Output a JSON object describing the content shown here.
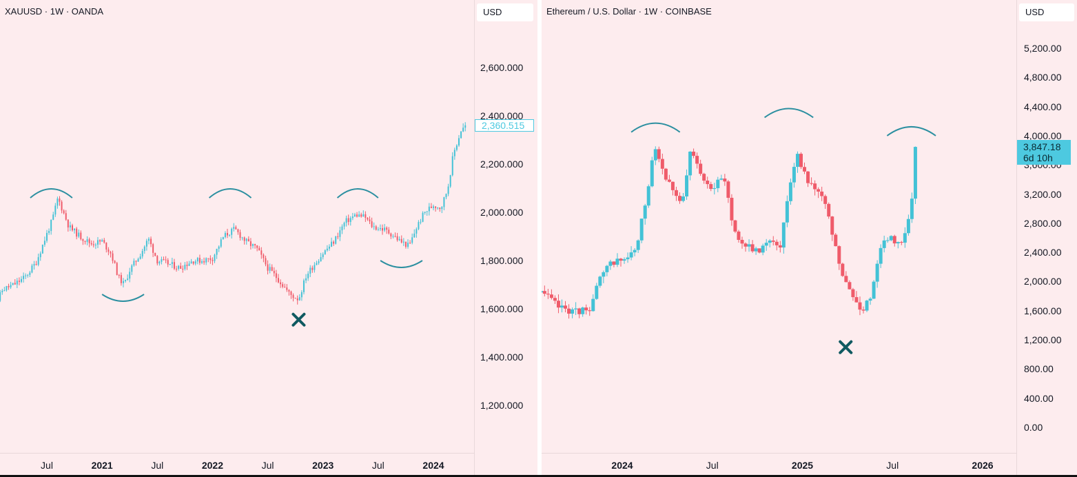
{
  "chart_data": [
    {
      "type": "candlestick",
      "title": "XAUUSD · 1W · OANDA",
      "currency": "USD",
      "y_ticks": [
        "2,600.000",
        "2,400.000",
        "2,200.000",
        "2,000.000",
        "1,800.000",
        "1,600.000",
        "1,400.000",
        "1,200.000"
      ],
      "y_tick_values": [
        2600,
        2400,
        2200,
        2000,
        1800,
        1600,
        1400,
        1200
      ],
      "x_ticks": [
        {
          "label": "Jul",
          "t": 2020.5,
          "bold": false
        },
        {
          "label": "2021",
          "t": 2021.0,
          "bold": true
        },
        {
          "label": "Jul",
          "t": 2021.5,
          "bold": false
        },
        {
          "label": "2022",
          "t": 2022.0,
          "bold": true
        },
        {
          "label": "Jul",
          "t": 2022.5,
          "bold": false
        },
        {
          "label": "2023",
          "t": 2023.0,
          "bold": true
        },
        {
          "label": "Jul",
          "t": 2023.5,
          "bold": false
        },
        {
          "label": "2024",
          "t": 2024.0,
          "bold": true
        }
      ],
      "last_price_label": "2,360.515",
      "last_price": 2360.515,
      "path": [
        [
          2020.0,
          1580
        ],
        [
          2020.1,
          1680
        ],
        [
          2020.2,
          1700
        ],
        [
          2020.3,
          1730
        ],
        [
          2020.4,
          1790
        ],
        [
          2020.55,
          1970
        ],
        [
          2020.6,
          2060
        ],
        [
          2020.7,
          1940
        ],
        [
          2020.8,
          1900
        ],
        [
          2020.9,
          1870
        ],
        [
          2021.0,
          1880
        ],
        [
          2021.08,
          1830
        ],
        [
          2021.15,
          1730
        ],
        [
          2021.2,
          1700
        ],
        [
          2021.25,
          1760
        ],
        [
          2021.35,
          1830
        ],
        [
          2021.42,
          1890
        ],
        [
          2021.5,
          1800
        ],
        [
          2021.58,
          1790
        ],
        [
          2021.7,
          1770
        ],
        [
          2021.82,
          1800
        ],
        [
          2021.9,
          1800
        ],
        [
          2022.0,
          1810
        ],
        [
          2022.1,
          1900
        ],
        [
          2022.2,
          1930
        ],
        [
          2022.3,
          1880
        ],
        [
          2022.4,
          1850
        ],
        [
          2022.5,
          1770
        ],
        [
          2022.6,
          1720
        ],
        [
          2022.7,
          1660
        ],
        [
          2022.78,
          1640
        ],
        [
          2022.85,
          1740
        ],
        [
          2022.93,
          1790
        ],
        [
          2023.0,
          1830
        ],
        [
          2023.1,
          1880
        ],
        [
          2023.2,
          1960
        ],
        [
          2023.3,
          1990
        ],
        [
          2023.38,
          1980
        ],
        [
          2023.45,
          1940
        ],
        [
          2023.55,
          1930
        ],
        [
          2023.62,
          1910
        ],
        [
          2023.7,
          1880
        ],
        [
          2023.78,
          1860
        ],
        [
          2023.85,
          1940
        ],
        [
          2023.92,
          2000
        ],
        [
          2024.0,
          2030
        ],
        [
          2024.07,
          2020
        ],
        [
          2024.13,
          2100
        ],
        [
          2024.18,
          2240
        ],
        [
          2024.25,
          2340
        ],
        [
          2024.3,
          2360.515
        ]
      ],
      "annotations": {
        "arcs_top": [
          {
            "t_start": 2020.35,
            "t_end": 2020.73,
            "y": 2060
          },
          {
            "t_start": 2021.97,
            "t_end": 2022.35,
            "y": 2060
          },
          {
            "t_start": 2023.13,
            "t_end": 2023.5,
            "y": 2060
          }
        ],
        "arcs_bottom": [
          {
            "t_start": 2021.0,
            "t_end": 2021.38,
            "y": 1660
          },
          {
            "t_start": 2023.52,
            "t_end": 2023.9,
            "y": 1800
          }
        ],
        "x_mark": {
          "t": 2022.78,
          "y": 1555
        }
      }
    },
    {
      "type": "candlestick",
      "title": "Ethereum / U.S. Dollar · 1W · COINBASE",
      "currency": "USD",
      "y_ticks": [
        "5,200.00",
        "4,800.00",
        "4,400.00",
        "4,000.00",
        "3,600.00",
        "3,200.00",
        "2,800.00",
        "2,400.00",
        "2,000.00",
        "1,600.00",
        "1,200.00",
        "800.00",
        "400.00",
        "0.00"
      ],
      "y_tick_values": [
        5200,
        4800,
        4400,
        4000,
        3600,
        3200,
        2800,
        2400,
        2000,
        1600,
        1200,
        800,
        400,
        0
      ],
      "x_ticks": [
        {
          "label": "2024",
          "t": 2024.0,
          "bold": true
        },
        {
          "label": "Jul",
          "t": 2024.5,
          "bold": false
        },
        {
          "label": "2025",
          "t": 2025.0,
          "bold": true
        },
        {
          "label": "Jul",
          "t": 2025.5,
          "bold": false
        },
        {
          "label": "2026",
          "t": 2026.0,
          "bold": true
        }
      ],
      "last_price_label": "3,847.18",
      "countdown_label": "6d 10h",
      "last_price": 3847.18,
      "path": [
        [
          2023.55,
          1850
        ],
        [
          2023.65,
          1650
        ],
        [
          2023.75,
          1580
        ],
        [
          2023.82,
          1650
        ],
        [
          2023.88,
          2050
        ],
        [
          2023.95,
          2280
        ],
        [
          2024.02,
          2300
        ],
        [
          2024.08,
          2450
        ],
        [
          2024.13,
          3100
        ],
        [
          2024.18,
          3900
        ],
        [
          2024.23,
          3500
        ],
        [
          2024.28,
          3300
        ],
        [
          2024.33,
          3000
        ],
        [
          2024.38,
          3800
        ],
        [
          2024.43,
          3500
        ],
        [
          2024.5,
          3300
        ],
        [
          2024.57,
          3400
        ],
        [
          2024.62,
          2700
        ],
        [
          2024.68,
          2500
        ],
        [
          2024.75,
          2400
        ],
        [
          2024.82,
          2600
        ],
        [
          2024.88,
          2500
        ],
        [
          2024.92,
          3200
        ],
        [
          2024.97,
          3800
        ],
        [
          2025.02,
          3400
        ],
        [
          2025.08,
          3300
        ],
        [
          2025.13,
          3000
        ],
        [
          2025.18,
          2500
        ],
        [
          2025.23,
          2000
        ],
        [
          2025.28,
          1800
        ],
        [
          2025.33,
          1600
        ],
        [
          2025.38,
          1800
        ],
        [
          2025.43,
          2500
        ],
        [
          2025.5,
          2600
        ],
        [
          2025.55,
          2500
        ],
        [
          2025.6,
          3000
        ],
        [
          2025.64,
          3847.18
        ]
      ],
      "annotations": {
        "arcs_top": [
          {
            "t_start": 2024.05,
            "t_end": 2024.32,
            "y": 4050
          },
          {
            "t_start": 2024.79,
            "t_end": 2025.06,
            "y": 4250
          },
          {
            "t_start": 2025.47,
            "t_end": 2025.74,
            "y": 4000
          }
        ],
        "x_mark": {
          "t": 2025.24,
          "y": 1100
        }
      }
    }
  ],
  "colors": {
    "background": "#fdecee",
    "up": "#43c2d6",
    "down": "#ef5b6a",
    "arc": "#2b8fa0",
    "mark": "#0f5960",
    "price_tag": "#4dc9e0"
  }
}
